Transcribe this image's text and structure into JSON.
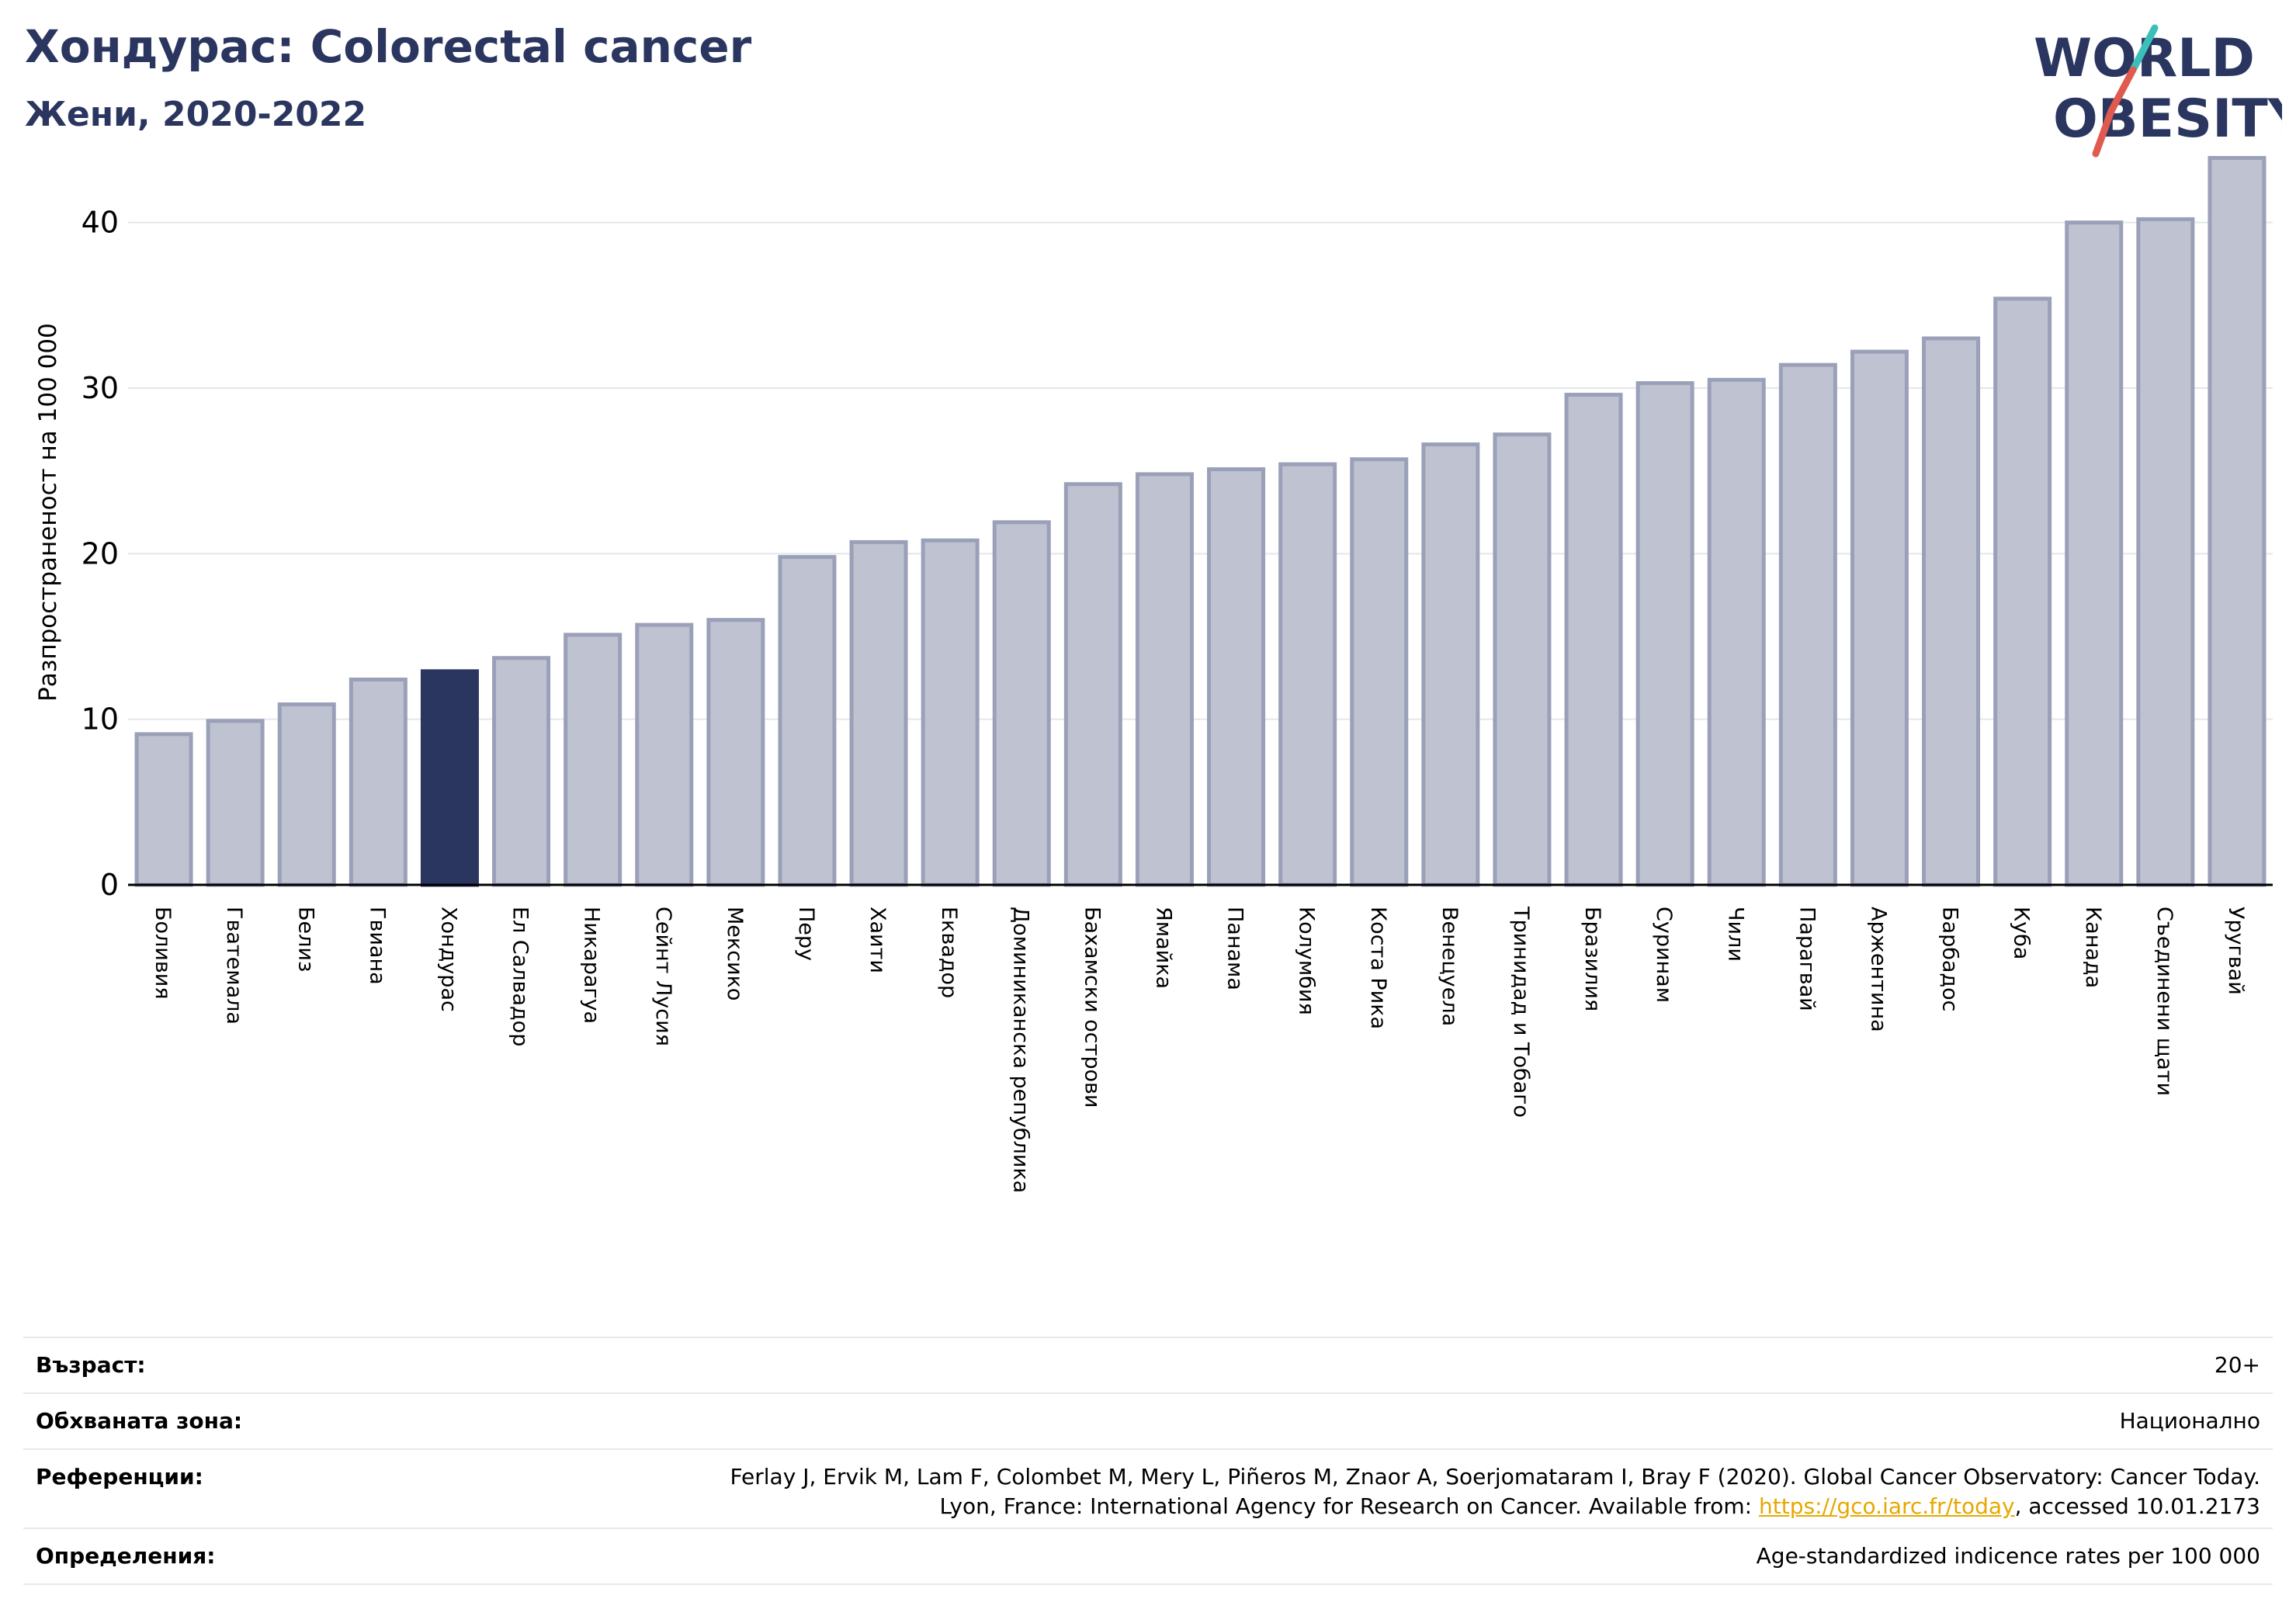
{
  "header": {
    "title": "Хондурас: Colorectal cancer",
    "subtitle": "Жени, 2020-2022"
  },
  "logo": {
    "line1": "WORLD",
    "line2": "OBESITY"
  },
  "colors": {
    "highlight": "#2a365f",
    "bar": "#bfc2d0",
    "bar_edge": "#9aa0b8",
    "title": "#2a365f",
    "logo_teal": "#3bbfb8",
    "logo_red": "#e05a4f"
  },
  "chart_data": {
    "type": "bar",
    "ylabel": "Разпространеност  на 100 000",
    "ylim": [
      0,
      45
    ],
    "yticks": [
      0,
      10,
      20,
      30,
      40
    ],
    "grid": true,
    "highlight": "Хондурас",
    "categories": [
      "Боливия",
      "Гватемала",
      "Белиз",
      "Гвиана",
      "Хондурас",
      "Ел Салвадор",
      "Никарагуа",
      "Сейнт Лусия",
      "Мексико",
      "Перу",
      "Хаити",
      "Еквадор",
      "Доминиканска република",
      "Бахамски острови",
      "Ямайка",
      "Панама",
      "Колумбия",
      "Коста Рика",
      "Венецуела",
      "Тринидад и Тобаго",
      "Бразилия",
      "Суринам",
      "Чили",
      "Парагвай",
      "Аржентина",
      "Барбадос",
      "Куба",
      "Канада",
      "Съединени щати",
      "Уругвай"
    ],
    "values": [
      9.1,
      9.9,
      10.9,
      12.4,
      12.9,
      13.7,
      15.1,
      15.7,
      16.0,
      19.8,
      20.7,
      20.8,
      21.9,
      24.2,
      24.8,
      25.1,
      25.4,
      25.7,
      26.6,
      27.2,
      29.6,
      30.3,
      30.5,
      31.4,
      32.2,
      33.0,
      35.4,
      40.0,
      40.2,
      43.9
    ]
  },
  "meta": [
    {
      "label": "Възраст:",
      "value": "20+"
    },
    {
      "label": "Обхваната зона:",
      "value": "Национално"
    },
    {
      "label": "Референции:",
      "value_line1": "Ferlay J, Ervik M, Lam F, Colombet M, Mery L, Piñeros M, Znaor A, Soerjomataram I, Bray F (2020). Global Cancer Observatory: Cancer Today.",
      "value_line2_pre": "Lyon, France: International Agency for Research on Cancer. Available from: ",
      "value_link": "https://gco.iarc.fr/today",
      "value_line2_post": ", accessed 10.01.2173"
    },
    {
      "label": "Определения:",
      "value": "Age-standardized indicence rates per 100 000"
    }
  ]
}
